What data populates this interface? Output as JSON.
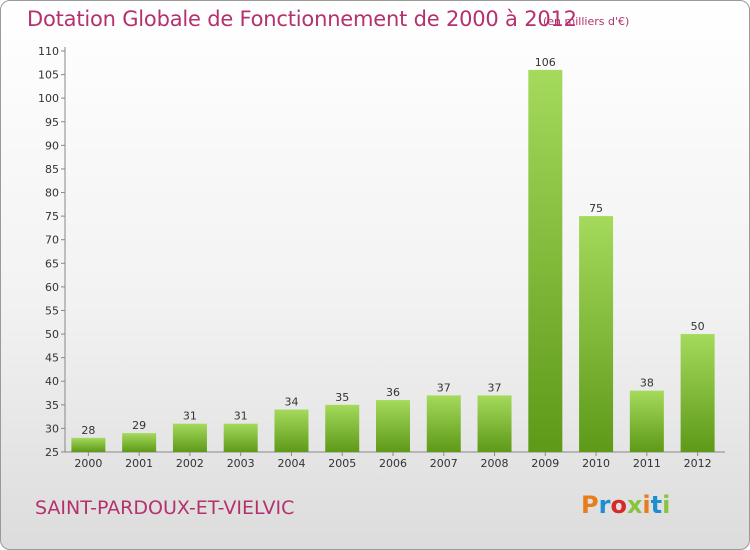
{
  "header": {
    "title": "Dotation Globale de Fonctionnement de 2000 à 2012",
    "subtitle": "(en milliers d'€)"
  },
  "footer": {
    "commune": "SAINT-PARDOUX-ET-VIELVIC",
    "logo": "Proxiti",
    "logo_colors": [
      "#e87d1e",
      "#1d8fd0",
      "#d62a2a",
      "#8ac43f",
      "#e87d1e",
      "#1d8fd0",
      "#8ac43f"
    ]
  },
  "colors": {
    "title": "#b4316e",
    "bar_light": "#9fd655",
    "bar_dark": "#5f9a18"
  },
  "chart_data": {
    "type": "bar",
    "title": "Dotation Globale de Fonctionnement de 2000 à 2012",
    "subtitle": "(en milliers d'€)",
    "categories": [
      "2000",
      "2001",
      "2002",
      "2003",
      "2004",
      "2005",
      "2006",
      "2007",
      "2008",
      "2009",
      "2010",
      "2011",
      "2012"
    ],
    "values": [
      28,
      29,
      31,
      31,
      34,
      35,
      36,
      37,
      37,
      106,
      75,
      38,
      50
    ],
    "ylim": [
      25,
      110
    ],
    "yticks": [
      25,
      30,
      35,
      40,
      45,
      50,
      55,
      60,
      65,
      70,
      75,
      80,
      85,
      90,
      95,
      100,
      105,
      110
    ],
    "grid": false,
    "legend": "none"
  }
}
